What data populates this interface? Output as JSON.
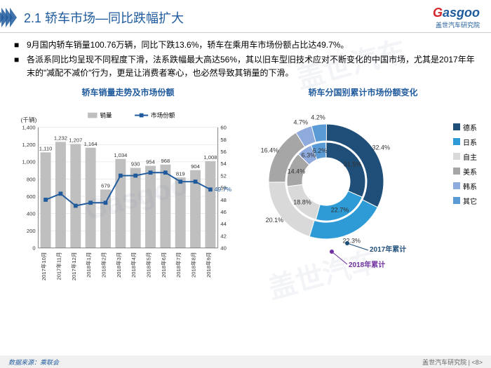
{
  "header": {
    "title": "2.1 轿车市场—同比跌幅扩大",
    "logo_left": "G",
    "logo_right": "asgoo",
    "logo_sub": "盖世汽车研究院"
  },
  "bullets": [
    "9月国内轿车销量100.76万辆，同比下跌13.6%，轿车在乘用车市场份额占比达49.7%。",
    "各派系同比均呈现不同程度下滑，法系跌幅最大高达56%，其以旧车型旧技术应对不断变化的中国市场，尤其是2017年年末的\"减配不减价\"行为，更是让消费者寒心，也必然导致其销量的下滑。"
  ],
  "bar_chart": {
    "title": "轿车销量走势及市场份额",
    "y_label": "(千辆)",
    "legend_bar": "销量",
    "legend_line": "市场份额",
    "categories": [
      "2017年10月",
      "2017年11月",
      "2017年12月",
      "2018年1月",
      "2018年2月",
      "2018年3月",
      "2018年4月",
      "2018年5月",
      "2018年6月",
      "2018年7月",
      "2018年8月",
      "2018年9月"
    ],
    "bar_values": [
      1110,
      1232,
      1207,
      1164,
      679,
      1034,
      930,
      954,
      968,
      819,
      904,
      1008
    ],
    "line_values": [
      48,
      49,
      47,
      47.5,
      47.5,
      52,
      52,
      52.5,
      52.5,
      51,
      51,
      49.7
    ],
    "callout": "49.7%",
    "y1_min": 0,
    "y1_max": 1400,
    "y1_step": 200,
    "y2_min": 40,
    "y2_max": 60,
    "y2_step": 2,
    "bar_color": "#bfbfbf",
    "line_color": "#1e5a9c",
    "axis_color": "#808080",
    "grid_color": "#d9d9d9",
    "label_fontsize": 8
  },
  "donut_chart": {
    "title": "轿车分国别累计市场份额变化",
    "legend": [
      {
        "label": "德系",
        "color": "#1f4e79"
      },
      {
        "label": "日系",
        "color": "#2e9bd6"
      },
      {
        "label": "自主",
        "color": "#d9d9d9"
      },
      {
        "label": "美系",
        "color": "#a6a6a6"
      },
      {
        "label": "韩系",
        "color": "#8faadc"
      },
      {
        "label": "其它",
        "color": "#5b9bd5"
      }
    ],
    "outer_ring": {
      "label": "2017年累计",
      "values": [
        32.4,
        22.3,
        20.1,
        16.4,
        4.7,
        4.2
      ],
      "pointer_color": "#1f4e79"
    },
    "inner_ring": {
      "label": "2018年累计",
      "values": [
        31.5,
        22.7,
        18.8,
        14.4,
        6.3,
        6.2
      ],
      "pointer_color": "#7030a0"
    },
    "label_texts_outer": [
      "32.4%",
      "22.3%",
      "20.1%",
      "16.4%",
      "4.7%",
      "4.2%"
    ],
    "label_texts_inner": [
      "31.5%",
      "22.7%",
      "18.8%",
      "14.4%",
      "6.3%",
      "6.2%"
    ]
  },
  "footer": {
    "source": "数据来源：乘联会",
    "page": "盖世汽车研究院 | <8>"
  },
  "watermarks": [
    "盖世汽车",
    "Gasgoo",
    "盖世汽车"
  ]
}
